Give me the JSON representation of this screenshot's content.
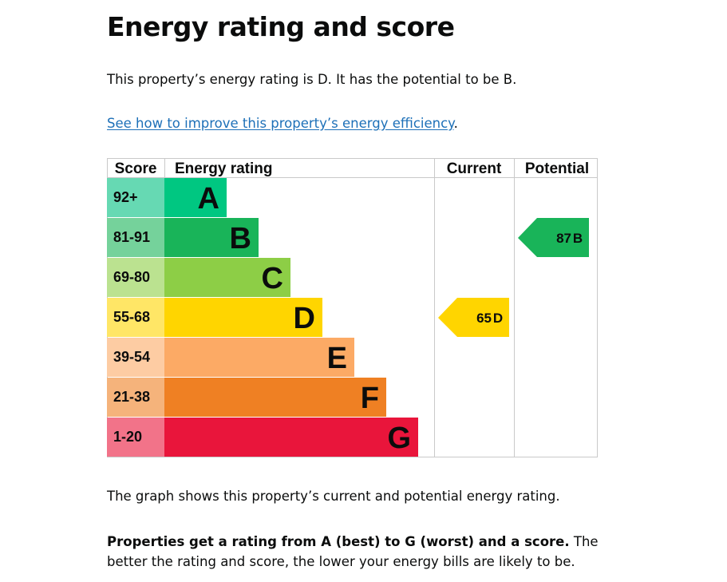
{
  "page": {
    "title": "Energy rating and score",
    "lead": "This property’s energy rating is D. It has the potential to be B.",
    "link_text": "See how to improve this property’s energy efficiency",
    "link_suffix": ".",
    "graph_note": "The graph shows this property’s current and potential energy rating.",
    "rating_bold": "Properties get a rating from A (best) to G (worst) and a score.",
    "rating_rest": " The better the rating and score, the lower your energy bills are likely to be."
  },
  "chart_data": {
    "type": "bar",
    "headers": {
      "score": "Score",
      "rating": "Energy rating",
      "current": "Current",
      "potential": "Potential"
    },
    "bands": [
      {
        "score": "92+",
        "letter": "A",
        "color": "#00c781",
        "score_bg": "#66d9b3"
      },
      {
        "score": "81-91",
        "letter": "B",
        "color": "#19b459",
        "score_bg": "#75d29b"
      },
      {
        "score": "69-80",
        "letter": "C",
        "color": "#8dce46",
        "score_bg": "#bbe290"
      },
      {
        "score": "55-68",
        "letter": "D",
        "color": "#ffd500",
        "score_bg": "#ffe666"
      },
      {
        "score": "39-54",
        "letter": "E",
        "color": "#fcaa65",
        "score_bg": "#fdcca3"
      },
      {
        "score": "21-38",
        "letter": "F",
        "color": "#ef8023",
        "score_bg": "#f5b37b"
      },
      {
        "score": "1-20",
        "letter": "G",
        "color": "#e9153b",
        "score_bg": "#f27389"
      }
    ],
    "current": {
      "score": 65,
      "letter": "D",
      "color": "#ffd500"
    },
    "potential": {
      "score": 87,
      "letter": "B",
      "color": "#19b459"
    }
  }
}
